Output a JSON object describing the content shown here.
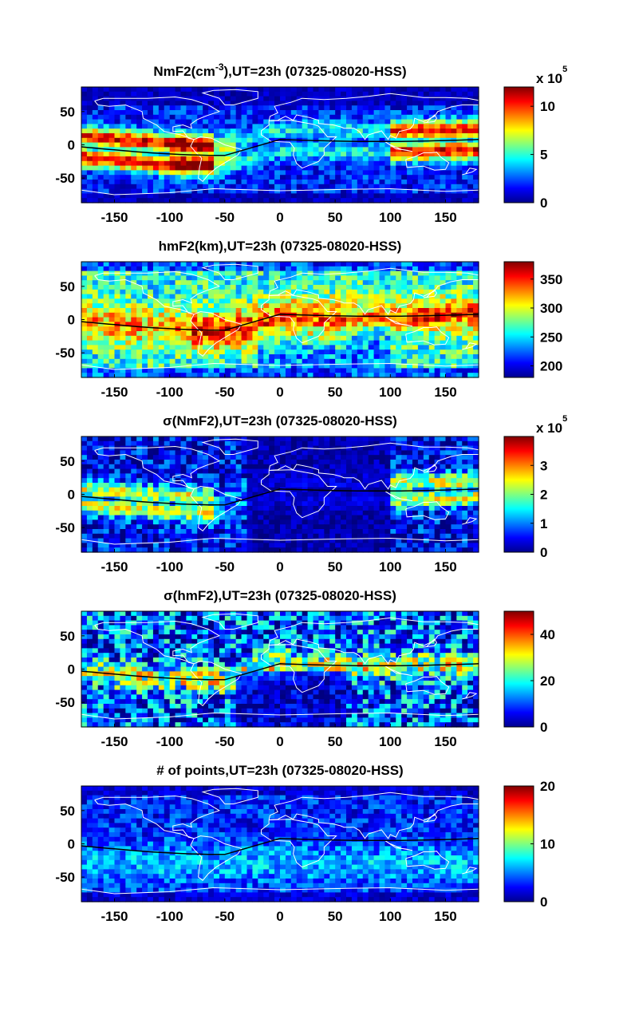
{
  "colors": {
    "background": "#ffffff",
    "coastline": "#ffffff",
    "equator_line": "#000000",
    "frame": "#000000"
  },
  "colormap": "jet",
  "chart_data": [
    {
      "type": "heatmap",
      "id": "nmf2",
      "title_main": "NmF2(cm",
      "title_sup": "-3",
      "title_rest": "),UT=23h (07325-08020-HSS)",
      "xlabel": "",
      "ylabel": "",
      "xlim": [
        -180,
        180
      ],
      "ylim": [
        -87,
        87
      ],
      "x_ticks": [
        "-150",
        "-100",
        "-50",
        "0",
        "50",
        "100",
        "150"
      ],
      "y_ticks": [
        "50",
        "0",
        "-50"
      ],
      "colorbar": {
        "range": [
          0,
          12
        ],
        "ticks": [
          "10",
          "5",
          "0"
        ],
        "exponent_label": "x 10",
        "exponent_power": "5"
      },
      "grid": false
    },
    {
      "type": "heatmap",
      "id": "hmf2",
      "title_main": "hmF2(km),UT=23h (07325-08020-HSS)",
      "title_sup": "",
      "title_rest": "",
      "xlabel": "",
      "ylabel": "",
      "xlim": [
        -180,
        180
      ],
      "ylim": [
        -87,
        87
      ],
      "x_ticks": [
        "-150",
        "-100",
        "-50",
        "0",
        "50",
        "100",
        "150"
      ],
      "y_ticks": [
        "50",
        "0",
        "-50"
      ],
      "colorbar": {
        "range": [
          180,
          380
        ],
        "ticks": [
          "350",
          "300",
          "250",
          "200"
        ],
        "exponent_label": "",
        "exponent_power": ""
      },
      "grid": false
    },
    {
      "type": "heatmap",
      "id": "sigma-nmf2",
      "title_main": "σ(NmF2),UT=23h (07325-08020-HSS)",
      "title_sup": "",
      "title_rest": "",
      "xlabel": "",
      "ylabel": "",
      "xlim": [
        -180,
        180
      ],
      "ylim": [
        -87,
        87
      ],
      "x_ticks": [
        "-150",
        "-100",
        "-50",
        "0",
        "50",
        "100",
        "150"
      ],
      "y_ticks": [
        "50",
        "0",
        "-50"
      ],
      "colorbar": {
        "range": [
          0,
          4
        ],
        "ticks": [
          "3",
          "2",
          "1",
          "0"
        ],
        "exponent_label": "x 10",
        "exponent_power": "5"
      },
      "grid": false
    },
    {
      "type": "heatmap",
      "id": "sigma-hmf2",
      "title_main": "σ(hmF2),UT=23h (07325-08020-HSS)",
      "title_sup": "",
      "title_rest": "",
      "xlabel": "",
      "ylabel": "",
      "xlim": [
        -180,
        180
      ],
      "ylim": [
        -87,
        87
      ],
      "x_ticks": [
        "-150",
        "-100",
        "-50",
        "0",
        "50",
        "100",
        "150"
      ],
      "y_ticks": [
        "50",
        "0",
        "-50"
      ],
      "colorbar": {
        "range": [
          0,
          50
        ],
        "ticks": [
          "40",
          "20",
          "0"
        ],
        "exponent_label": "",
        "exponent_power": ""
      },
      "grid": false
    },
    {
      "type": "heatmap",
      "id": "points",
      "title_main": "# of points,UT=23h (07325-08020-HSS)",
      "title_sup": "",
      "title_rest": "",
      "xlabel": "",
      "ylabel": "",
      "xlim": [
        -180,
        180
      ],
      "ylim": [
        -87,
        87
      ],
      "x_ticks": [
        "-150",
        "-100",
        "-50",
        "0",
        "50",
        "100",
        "150"
      ],
      "y_ticks": [
        "50",
        "0",
        "-50"
      ],
      "colorbar": {
        "range": [
          0,
          20
        ],
        "ticks": [
          "20",
          "10",
          "0"
        ],
        "exponent_label": "",
        "exponent_power": ""
      },
      "grid": false
    }
  ]
}
